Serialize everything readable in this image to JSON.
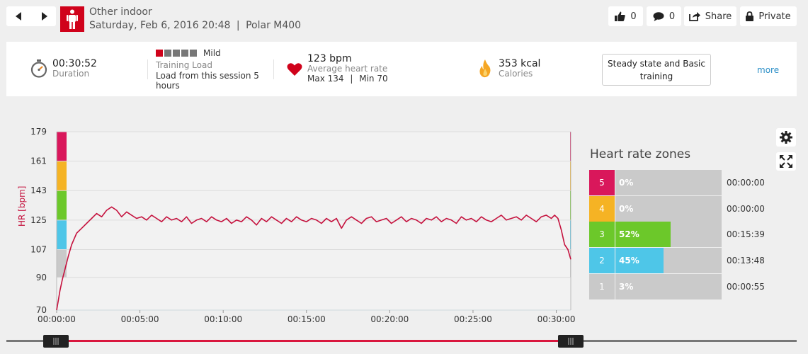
{
  "header": {
    "prev_icon": "chevron-left-icon",
    "next_icon": "chevron-right-icon",
    "sport_icon": "person-standing-icon",
    "sport": "Other indoor",
    "date": "Saturday, Feb 6, 2016 20:48",
    "separator": "|",
    "device": "Polar M400",
    "likes": "0",
    "comments": "0",
    "share_label": "Share",
    "privacy_label": "Private"
  },
  "summary": {
    "duration": {
      "value": "00:30:52",
      "label": "Duration",
      "icon": "stopwatch-icon"
    },
    "training_load": {
      "level": "Mild",
      "level_bars": 1,
      "label": "Training Load",
      "text": "Load from this session 5 hours"
    },
    "heart_rate": {
      "value": "123 bpm",
      "label": "Average heart rate",
      "max": "Max 134",
      "separator": "|",
      "min": "Min 70",
      "icon": "heart-icon"
    },
    "calories": {
      "value": "353 kcal",
      "label": "Calories",
      "icon": "flame-icon"
    },
    "training_benefit": "Steady state and Basic training",
    "more_label": "more"
  },
  "chart_data": {
    "type": "line",
    "ylabel": "HR [bpm]",
    "y_ticks": [
      179,
      161,
      143,
      125,
      107,
      90,
      70
    ],
    "ylim": [
      70,
      179
    ],
    "x_ticks": [
      "00:00:00",
      "00:05:00",
      "00:10:00",
      "00:15:00",
      "00:20:00",
      "00:25:00",
      "00:30:00"
    ],
    "xlim_min": [
      0,
      30.87
    ],
    "zone_colors": [
      "#c9c9c9",
      "#4ec6e8",
      "#6cc82a",
      "#f5b324",
      "#d9175b"
    ],
    "line_color": "#c5123e",
    "grid": true,
    "series": [
      {
        "x": [
          0,
          0.1,
          0.2,
          0.35,
          0.5,
          0.7,
          0.9,
          1.2,
          1.5,
          1.8,
          2.1,
          2.4,
          2.7,
          3.0,
          3.3,
          3.6,
          3.9,
          4.2,
          4.5,
          4.8,
          5.1,
          5.4,
          5.7,
          6.0,
          6.3,
          6.6,
          6.9,
          7.2,
          7.5,
          7.8,
          8.1,
          8.4,
          8.7,
          9.0,
          9.3,
          9.6,
          9.9,
          10.2,
          10.5,
          10.8,
          11.1,
          11.4,
          11.7,
          12.0,
          12.3,
          12.6,
          12.9,
          13.2,
          13.5,
          13.8,
          14.1,
          14.4,
          14.7,
          15.0,
          15.3,
          15.6,
          15.9,
          16.2,
          16.5,
          16.8,
          17.1,
          17.4,
          17.7,
          18.0,
          18.3,
          18.6,
          18.9,
          19.2,
          19.5,
          19.8,
          20.1,
          20.4,
          20.7,
          21.0,
          21.3,
          21.6,
          21.9,
          22.2,
          22.5,
          22.8,
          23.1,
          23.4,
          23.7,
          24.0,
          24.3,
          24.6,
          24.9,
          25.2,
          25.5,
          25.8,
          26.1,
          26.4,
          26.7,
          27.0,
          27.3,
          27.6,
          27.9,
          28.2,
          28.5,
          28.8,
          29.1,
          29.4,
          29.7,
          29.9,
          30.1,
          30.3,
          30.5,
          30.7,
          30.87
        ],
        "y": [
          70,
          76,
          82,
          89,
          95,
          103,
          110,
          117,
          120,
          123,
          126,
          129,
          127,
          131,
          133,
          131,
          127,
          130,
          128,
          126,
          127,
          125,
          128,
          126,
          124,
          127,
          125,
          126,
          124,
          127,
          123,
          125,
          126,
          124,
          127,
          125,
          124,
          126,
          123,
          125,
          124,
          127,
          125,
          122,
          126,
          124,
          127,
          125,
          123,
          126,
          124,
          127,
          125,
          124,
          126,
          125,
          123,
          126,
          124,
          126,
          120,
          125,
          127,
          125,
          123,
          126,
          127,
          124,
          125,
          126,
          123,
          125,
          127,
          124,
          126,
          125,
          123,
          126,
          125,
          127,
          124,
          126,
          125,
          123,
          127,
          125,
          126,
          124,
          127,
          125,
          124,
          126,
          128,
          125,
          126,
          127,
          125,
          128,
          126,
          124,
          127,
          128,
          126,
          128,
          126,
          119,
          110,
          107,
          101
        ]
      }
    ]
  },
  "zones": {
    "title": "Heart rate zones",
    "items": [
      {
        "zone": "5",
        "percent": "0%",
        "fraction": 0.0,
        "time": "00:00:00",
        "color": "#d9175b"
      },
      {
        "zone": "4",
        "percent": "0%",
        "fraction": 0.0,
        "time": "00:00:00",
        "color": "#f5b324"
      },
      {
        "zone": "3",
        "percent": "52%",
        "fraction": 0.52,
        "time": "00:15:39",
        "color": "#6cc82a"
      },
      {
        "zone": "2",
        "percent": "45%",
        "fraction": 0.45,
        "time": "00:13:48",
        "color": "#4ec6e8"
      },
      {
        "zone": "1",
        "percent": "3%",
        "fraction": 0.03,
        "time": "00:00:55",
        "color": "#c9c9c9"
      }
    ]
  },
  "tools": {
    "settings_icon": "gear-icon",
    "fullscreen_icon": "expand-icon"
  }
}
